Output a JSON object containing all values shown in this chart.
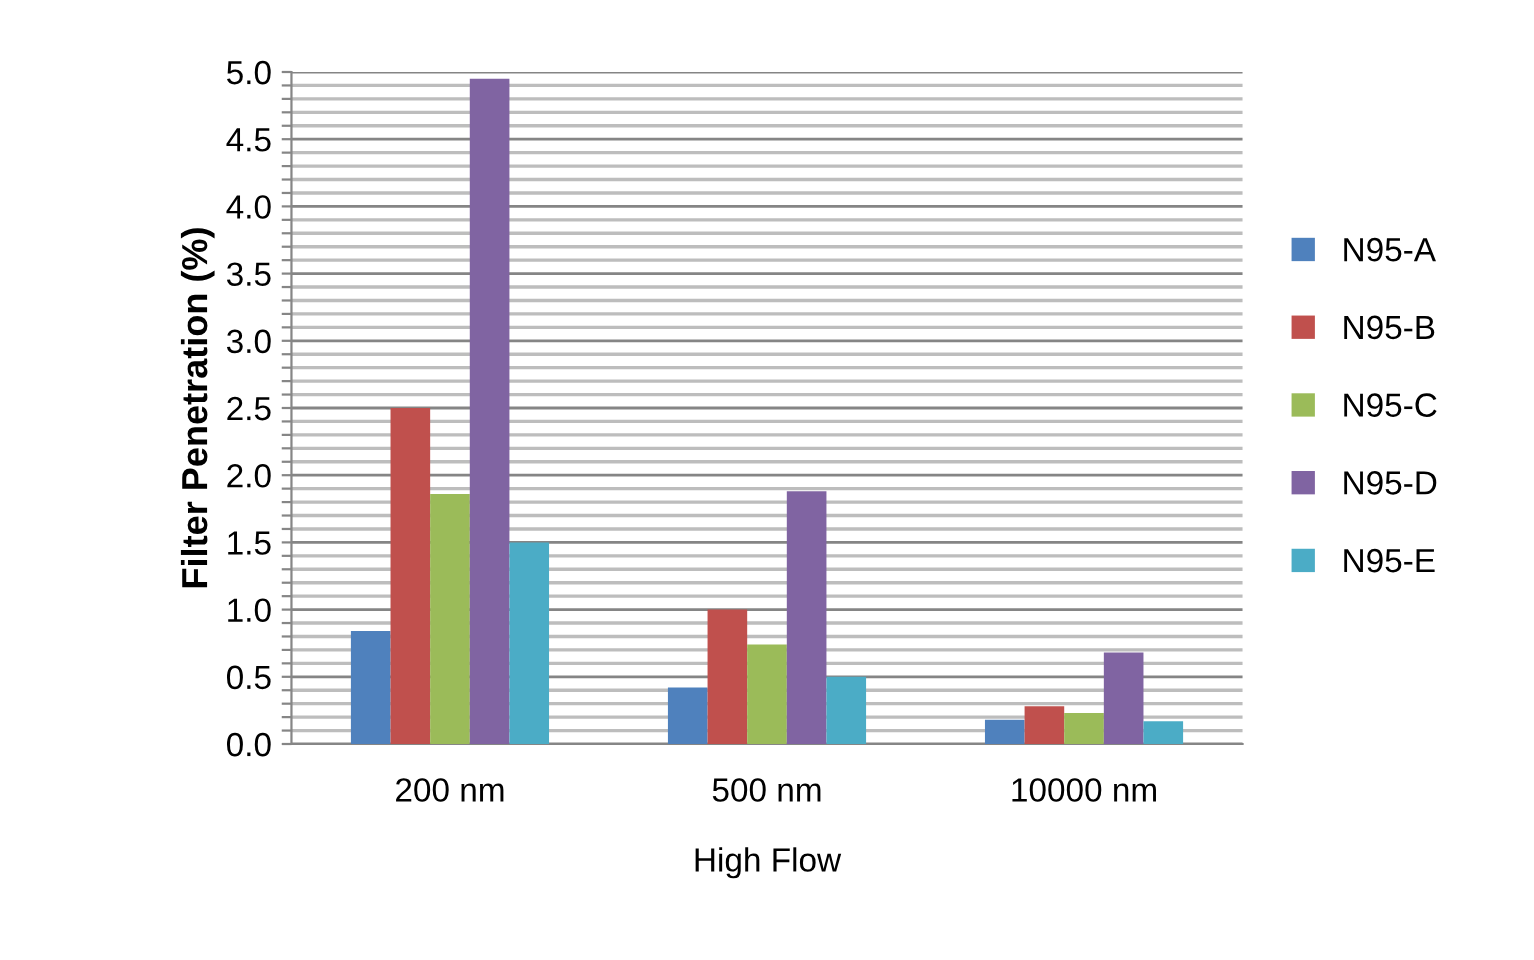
{
  "chart_data": {
    "type": "bar",
    "ylabel": "Filter Penetration (%)",
    "xlabel": "High Flow",
    "categories": [
      "200 nm",
      "500 nm",
      "10000 nm"
    ],
    "series": [
      {
        "name": "N95-A",
        "color": "#4f81bd",
        "values": [
          0.84,
          0.42,
          0.18
        ]
      },
      {
        "name": "N95-B",
        "color": "#c0504d",
        "values": [
          2.5,
          1.0,
          0.28
        ]
      },
      {
        "name": "N95-C",
        "color": "#9bbb59",
        "values": [
          1.86,
          0.74,
          0.23
        ]
      },
      {
        "name": "N95-D",
        "color": "#8064a2",
        "values": [
          4.95,
          1.88,
          0.68
        ]
      },
      {
        "name": "N95-E",
        "color": "#4bacc6",
        "values": [
          1.5,
          0.5,
          0.17
        ]
      }
    ],
    "ylim": [
      0,
      5
    ],
    "yticks": [
      {
        "value": 0,
        "label": "0.0"
      },
      {
        "value": 0.1,
        "label": null
      },
      {
        "value": 0.2,
        "label": null
      },
      {
        "value": 0.3,
        "label": null
      },
      {
        "value": 0.4,
        "label": null
      },
      {
        "value": 0.5,
        "label": "0.5"
      },
      {
        "value": 0.6,
        "label": null
      },
      {
        "value": 0.7,
        "label": null
      },
      {
        "value": 0.8,
        "label": null
      },
      {
        "value": 0.9,
        "label": null
      },
      {
        "value": 1,
        "label": "1.0"
      },
      {
        "value": 1.1,
        "label": null
      },
      {
        "value": 1.2,
        "label": null
      },
      {
        "value": 1.3,
        "label": null
      },
      {
        "value": 1.4,
        "label": null
      },
      {
        "value": 1.5,
        "label": "1.5"
      },
      {
        "value": 1.6,
        "label": null
      },
      {
        "value": 1.7,
        "label": null
      },
      {
        "value": 1.8,
        "label": null
      },
      {
        "value": 1.9,
        "label": null
      },
      {
        "value": 2,
        "label": "2.0"
      },
      {
        "value": 2.1,
        "label": null
      },
      {
        "value": 2.2,
        "label": null
      },
      {
        "value": 2.3,
        "label": null
      },
      {
        "value": 2.4,
        "label": null
      },
      {
        "value": 2.5,
        "label": "2.5"
      },
      {
        "value": 2.6,
        "label": null
      },
      {
        "value": 2.7,
        "label": null
      },
      {
        "value": 2.8,
        "label": null
      },
      {
        "value": 2.9,
        "label": null
      },
      {
        "value": 3,
        "label": "3.0"
      },
      {
        "value": 3.1,
        "label": null
      },
      {
        "value": 3.2,
        "label": null
      },
      {
        "value": 3.3,
        "label": null
      },
      {
        "value": 3.4,
        "label": null
      },
      {
        "value": 3.5,
        "label": "3.5"
      },
      {
        "value": 3.6,
        "label": null
      },
      {
        "value": 3.7,
        "label": null
      },
      {
        "value": 3.8,
        "label": null
      },
      {
        "value": 3.9,
        "label": null
      },
      {
        "value": 4,
        "label": "4.0"
      },
      {
        "value": 4.1,
        "label": null
      },
      {
        "value": 4.2,
        "label": null
      },
      {
        "value": 4.3,
        "label": null
      },
      {
        "value": 4.4,
        "label": null
      },
      {
        "value": 4.5,
        "label": "4.5"
      },
      {
        "value": 4.6,
        "label": null
      },
      {
        "value": 4.7,
        "label": null
      },
      {
        "value": 4.8,
        "label": null
      },
      {
        "value": 4.9,
        "label": null
      },
      {
        "value": 5,
        "label": "5.0"
      }
    ],
    "grid": "y",
    "legend": "right"
  }
}
